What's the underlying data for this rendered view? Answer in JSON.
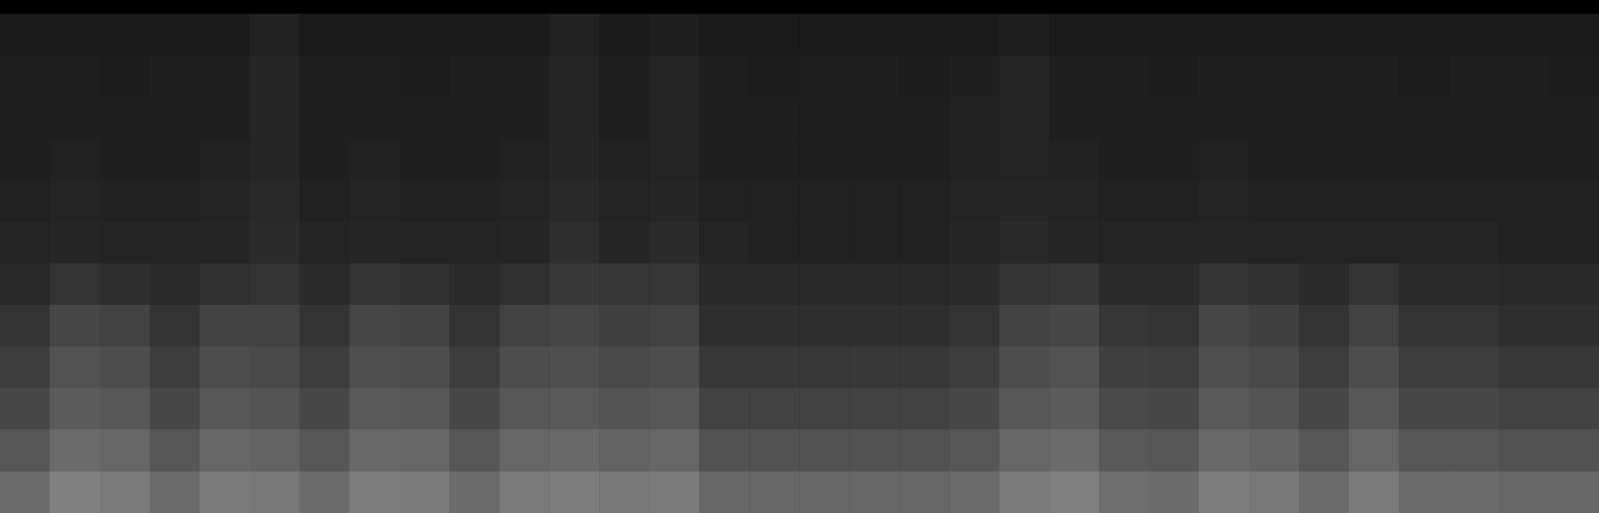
{
  "chart_data": {
    "type": "heatmap",
    "tick_labels": false,
    "value_range": [
      0,
      1
    ],
    "cells": [
      [
        0.1,
        0.1,
        0.1,
        0.1,
        0.1,
        0.13,
        0.1,
        0.1,
        0.1,
        0.1,
        0.1,
        0.13,
        0.1,
        0.12,
        0.1,
        0.1,
        0.1,
        0.1,
        0.1,
        0.1,
        0.12,
        0.1,
        0.1,
        0.1,
        0.1,
        0.1,
        0.1,
        0.1,
        0.1,
        0.1,
        0.1,
        0.1
      ],
      [
        0.12,
        0.12,
        0.11,
        0.12,
        0.12,
        0.15,
        0.12,
        0.12,
        0.11,
        0.12,
        0.12,
        0.15,
        0.12,
        0.14,
        0.12,
        0.11,
        0.12,
        0.12,
        0.11,
        0.12,
        0.14,
        0.12,
        0.12,
        0.11,
        0.12,
        0.12,
        0.12,
        0.12,
        0.11,
        0.12,
        0.12,
        0.11
      ],
      [
        0.12,
        0.12,
        0.12,
        0.12,
        0.12,
        0.15,
        0.12,
        0.12,
        0.12,
        0.12,
        0.12,
        0.15,
        0.12,
        0.14,
        0.12,
        0.12,
        0.12,
        0.12,
        0.12,
        0.13,
        0.14,
        0.12,
        0.12,
        0.12,
        0.12,
        0.12,
        0.12,
        0.12,
        0.12,
        0.12,
        0.12,
        0.12
      ],
      [
        0.12,
        0.13,
        0.12,
        0.12,
        0.13,
        0.15,
        0.12,
        0.13,
        0.12,
        0.12,
        0.13,
        0.15,
        0.13,
        0.14,
        0.12,
        0.12,
        0.12,
        0.12,
        0.12,
        0.13,
        0.14,
        0.13,
        0.12,
        0.12,
        0.13,
        0.12,
        0.12,
        0.12,
        0.12,
        0.12,
        0.12,
        0.12
      ],
      [
        0.13,
        0.14,
        0.13,
        0.13,
        0.14,
        0.16,
        0.13,
        0.14,
        0.13,
        0.13,
        0.14,
        0.16,
        0.14,
        0.15,
        0.13,
        0.13,
        0.13,
        0.13,
        0.13,
        0.14,
        0.15,
        0.14,
        0.13,
        0.13,
        0.14,
        0.13,
        0.13,
        0.13,
        0.13,
        0.13,
        0.13,
        0.13
      ],
      [
        0.14,
        0.15,
        0.14,
        0.14,
        0.15,
        0.17,
        0.14,
        0.15,
        0.14,
        0.14,
        0.15,
        0.18,
        0.15,
        0.17,
        0.14,
        0.13,
        0.13,
        0.13,
        0.13,
        0.15,
        0.16,
        0.15,
        0.14,
        0.14,
        0.15,
        0.14,
        0.14,
        0.14,
        0.14,
        0.14,
        0.13,
        0.13
      ],
      [
        0.16,
        0.2,
        0.18,
        0.17,
        0.19,
        0.2,
        0.17,
        0.2,
        0.19,
        0.17,
        0.19,
        0.22,
        0.21,
        0.21,
        0.16,
        0.16,
        0.16,
        0.16,
        0.16,
        0.17,
        0.2,
        0.21,
        0.17,
        0.17,
        0.2,
        0.19,
        0.17,
        0.2,
        0.17,
        0.17,
        0.16,
        0.16
      ],
      [
        0.2,
        0.28,
        0.26,
        0.2,
        0.26,
        0.26,
        0.2,
        0.27,
        0.26,
        0.2,
        0.26,
        0.27,
        0.25,
        0.26,
        0.18,
        0.18,
        0.18,
        0.18,
        0.18,
        0.2,
        0.26,
        0.28,
        0.21,
        0.2,
        0.27,
        0.25,
        0.2,
        0.26,
        0.2,
        0.2,
        0.18,
        0.18
      ],
      [
        0.24,
        0.32,
        0.3,
        0.24,
        0.3,
        0.29,
        0.24,
        0.31,
        0.3,
        0.24,
        0.3,
        0.31,
        0.29,
        0.3,
        0.22,
        0.22,
        0.22,
        0.22,
        0.22,
        0.24,
        0.3,
        0.32,
        0.25,
        0.24,
        0.31,
        0.29,
        0.24,
        0.3,
        0.24,
        0.24,
        0.22,
        0.22
      ],
      [
        0.28,
        0.36,
        0.34,
        0.28,
        0.34,
        0.33,
        0.28,
        0.35,
        0.34,
        0.28,
        0.34,
        0.35,
        0.33,
        0.34,
        0.26,
        0.26,
        0.26,
        0.26,
        0.26,
        0.28,
        0.34,
        0.36,
        0.29,
        0.28,
        0.35,
        0.33,
        0.28,
        0.34,
        0.28,
        0.28,
        0.26,
        0.26
      ],
      [
        0.34,
        0.42,
        0.4,
        0.34,
        0.4,
        0.39,
        0.34,
        0.41,
        0.4,
        0.34,
        0.4,
        0.41,
        0.39,
        0.4,
        0.32,
        0.32,
        0.32,
        0.32,
        0.32,
        0.34,
        0.4,
        0.42,
        0.35,
        0.34,
        0.41,
        0.39,
        0.34,
        0.4,
        0.34,
        0.34,
        0.32,
        0.32
      ],
      [
        0.42,
        0.5,
        0.48,
        0.42,
        0.48,
        0.47,
        0.42,
        0.49,
        0.48,
        0.42,
        0.48,
        0.49,
        0.47,
        0.48,
        0.4,
        0.4,
        0.4,
        0.4,
        0.4,
        0.42,
        0.48,
        0.5,
        0.43,
        0.42,
        0.49,
        0.47,
        0.42,
        0.48,
        0.42,
        0.42,
        0.4,
        0.4
      ]
    ]
  }
}
